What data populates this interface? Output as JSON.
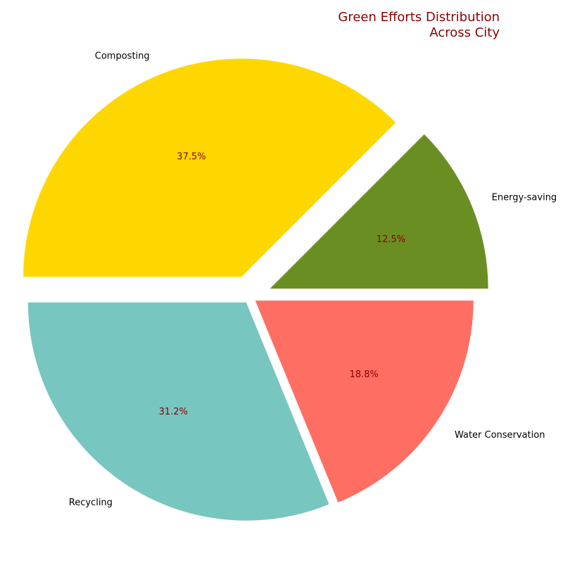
{
  "chart_data": {
    "type": "pie",
    "title_lines": [
      "Green Efforts Distribution",
      "Across City"
    ],
    "start_angle_deg": 0,
    "direction": "counterclockwise",
    "slices": [
      {
        "label": "Energy-saving",
        "value": 12.5,
        "pct_label": "12.5%",
        "color": "#6b8e23",
        "explode": 0.1
      },
      {
        "label": "Composting",
        "value": 37.5,
        "pct_label": "37.5%",
        "color": "#ffd700",
        "explode": 0.1
      },
      {
        "label": "Recycling",
        "value": 31.2,
        "pct_label": "31.2%",
        "color": "#77c6bf",
        "explode": 0.03
      },
      {
        "label": "Water Conservation",
        "value": 18.8,
        "pct_label": "18.8%",
        "color": "#ff6e63",
        "explode": 0.03
      }
    ]
  }
}
